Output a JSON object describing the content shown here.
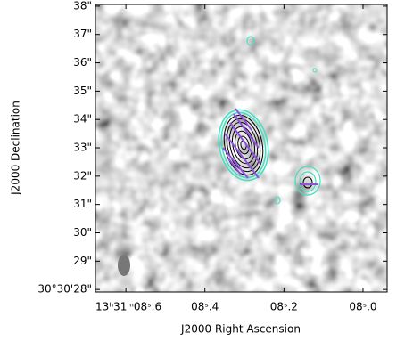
{
  "chart_data": {
    "type": "image",
    "x_label": "J2000 Right Ascension",
    "y_label": "J2000 Declination",
    "xlim": [
      8.677,
      7.939
    ],
    "ylim": [
      27.91,
      38.06
    ],
    "xticks": [
      {
        "value": 8.6,
        "label": "13ʰ31ᵐ08ˢ.6"
      },
      {
        "value": 8.4,
        "label": "08ˢ.4"
      },
      {
        "value": 8.2,
        "label": "08ˢ.2"
      },
      {
        "value": 8.0,
        "label": "08ˢ.0"
      }
    ],
    "yticks": [
      {
        "value": 28,
        "label": "30°30'28\""
      },
      {
        "value": 29,
        "label": "29\""
      },
      {
        "value": 30,
        "label": "30\""
      },
      {
        "value": 31,
        "label": "31\""
      },
      {
        "value": 32,
        "label": "32\""
      },
      {
        "value": 33,
        "label": "33\""
      },
      {
        "value": 34,
        "label": "34\""
      },
      {
        "value": 35,
        "label": "35\""
      },
      {
        "value": 36,
        "label": "36\""
      },
      {
        "value": 37,
        "label": "37\""
      },
      {
        "value": 38,
        "label": "38\""
      }
    ]
  }
}
